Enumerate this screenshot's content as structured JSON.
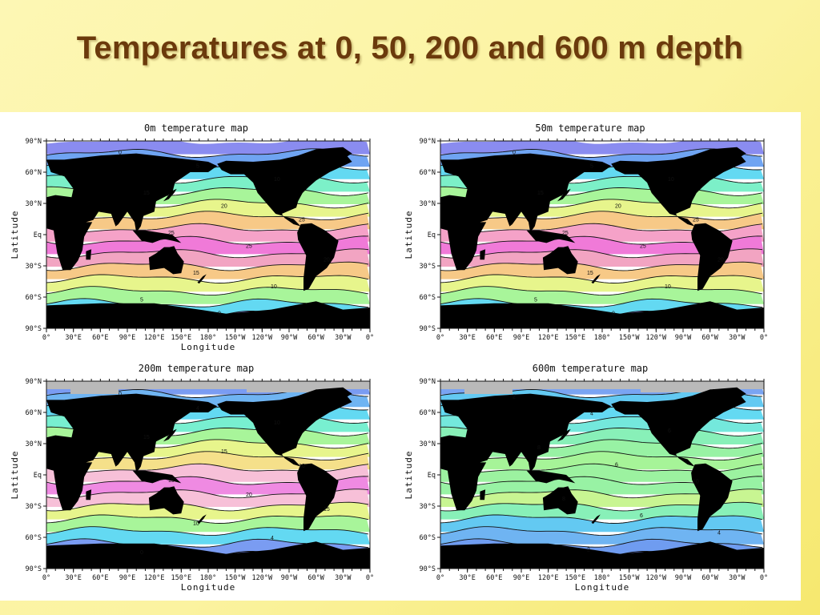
{
  "slide": {
    "title": "Temperatures at 0, 50, 200 and 600 m depth"
  },
  "maps": [
    {
      "title": "0m temperature map",
      "xlabel": "Longitude",
      "ylabel": "Latitude",
      "lat_ticks": [
        "90°N",
        "60°N",
        "30°N",
        "Eq",
        "30°S",
        "60°S",
        "90°S"
      ],
      "lon_ticks": [
        "0°",
        "30°E",
        "60°E",
        "90°E",
        "120°E",
        "150°E",
        "180°",
        "150°W",
        "120°W",
        "90°W",
        "60°W",
        "30°W",
        "0°"
      ],
      "contour_labels": [
        "0",
        "5",
        "10",
        "15",
        "20",
        "25",
        "25",
        "25",
        "20",
        "15",
        "10",
        "5",
        "0"
      ],
      "bands": [
        "#8a8cf0",
        "#6fa4f2",
        "#63d9f2",
        "#7cf0c8",
        "#a8f59a",
        "#e7f58c",
        "#f7c987",
        "#f5a2c8",
        "#f07ad8",
        "#f2a4c2",
        "#f7c987",
        "#e7f58c",
        "#a8f59a",
        "#63d9f2",
        "#8a8cf0"
      ],
      "ice": false
    },
    {
      "title": "50m temperature map",
      "xlabel": "",
      "ylabel": "Latitude",
      "lat_ticks": [
        "90°N",
        "60°N",
        "30°N",
        "Eq",
        "30°S",
        "60°S",
        "90°S"
      ],
      "lon_ticks": [
        "0°",
        "30°E",
        "60°E",
        "90°E",
        "120°E",
        "150°E",
        "180°",
        "150°W",
        "120°W",
        "90°W",
        "60°W",
        "30°W",
        "0°"
      ],
      "contour_labels": [
        "0",
        "5",
        "10",
        "15",
        "20",
        "25",
        "25",
        "25",
        "20",
        "15",
        "10",
        "5",
        "0"
      ],
      "bands": [
        "#8a8cf0",
        "#6fa4f2",
        "#63d9f2",
        "#7cf0c8",
        "#a8f59a",
        "#e7f58c",
        "#f7c987",
        "#f5a2c8",
        "#f07ad8",
        "#f2a4c2",
        "#f7c987",
        "#e7f58c",
        "#a8f59a",
        "#63d9f2",
        "#8a8cf0"
      ],
      "ice": false
    },
    {
      "title": "200m temperature map",
      "xlabel": "Longitude",
      "ylabel": "Latitude",
      "lat_ticks": [
        "90°N",
        "60°N",
        "30°N",
        "Eq",
        "30°S",
        "60°S",
        "90°S"
      ],
      "lon_ticks": [
        "0°",
        "30°E",
        "60°E",
        "90°E",
        "120°E",
        "150°E",
        "180°",
        "150°W",
        "120°W",
        "90°W",
        "60°W",
        "30°W",
        "0°"
      ],
      "contour_labels": [
        "0",
        "4",
        "10",
        "15",
        "15",
        "10",
        "15",
        "20",
        "15",
        "10",
        "4",
        "0"
      ],
      "bands": [
        "#7a9cf2",
        "#6fb4f2",
        "#63d9f2",
        "#78efd0",
        "#a8f59a",
        "#e7f58c",
        "#f5e08a",
        "#f7c0d8",
        "#ef8ae2",
        "#f7c0d8",
        "#e7f58c",
        "#a8f59a",
        "#63d9f2",
        "#7a9cf2",
        "#6f86ee"
      ],
      "ice": true
    },
    {
      "title": "600m temperature map",
      "xlabel": "Longitude",
      "ylabel": "Latitude",
      "lat_ticks": [
        "90°N",
        "60°N",
        "30°N",
        "Eq",
        "30°S",
        "60°S",
        "90°S"
      ],
      "lon_ticks": [
        "0°",
        "30°E",
        "60°E",
        "90°E",
        "120°E",
        "150°E",
        "180°",
        "150°W",
        "120°W",
        "90°W",
        "60°W",
        "30°W",
        "0°"
      ],
      "contour_labels": [
        "2",
        "4",
        "6",
        "8",
        "6",
        "10",
        "8",
        "6",
        "4",
        "2"
      ],
      "bands": [
        "#7aa4f2",
        "#63c9f2",
        "#63d9f2",
        "#74e8dc",
        "#88f0b8",
        "#98f2a4",
        "#a6f498",
        "#9cf2a0",
        "#98f2a4",
        "#c8f592",
        "#88f0b8",
        "#63c9f2",
        "#6fb4f2",
        "#6f9cf0",
        "#6f86ee"
      ],
      "ice": true
    }
  ]
}
